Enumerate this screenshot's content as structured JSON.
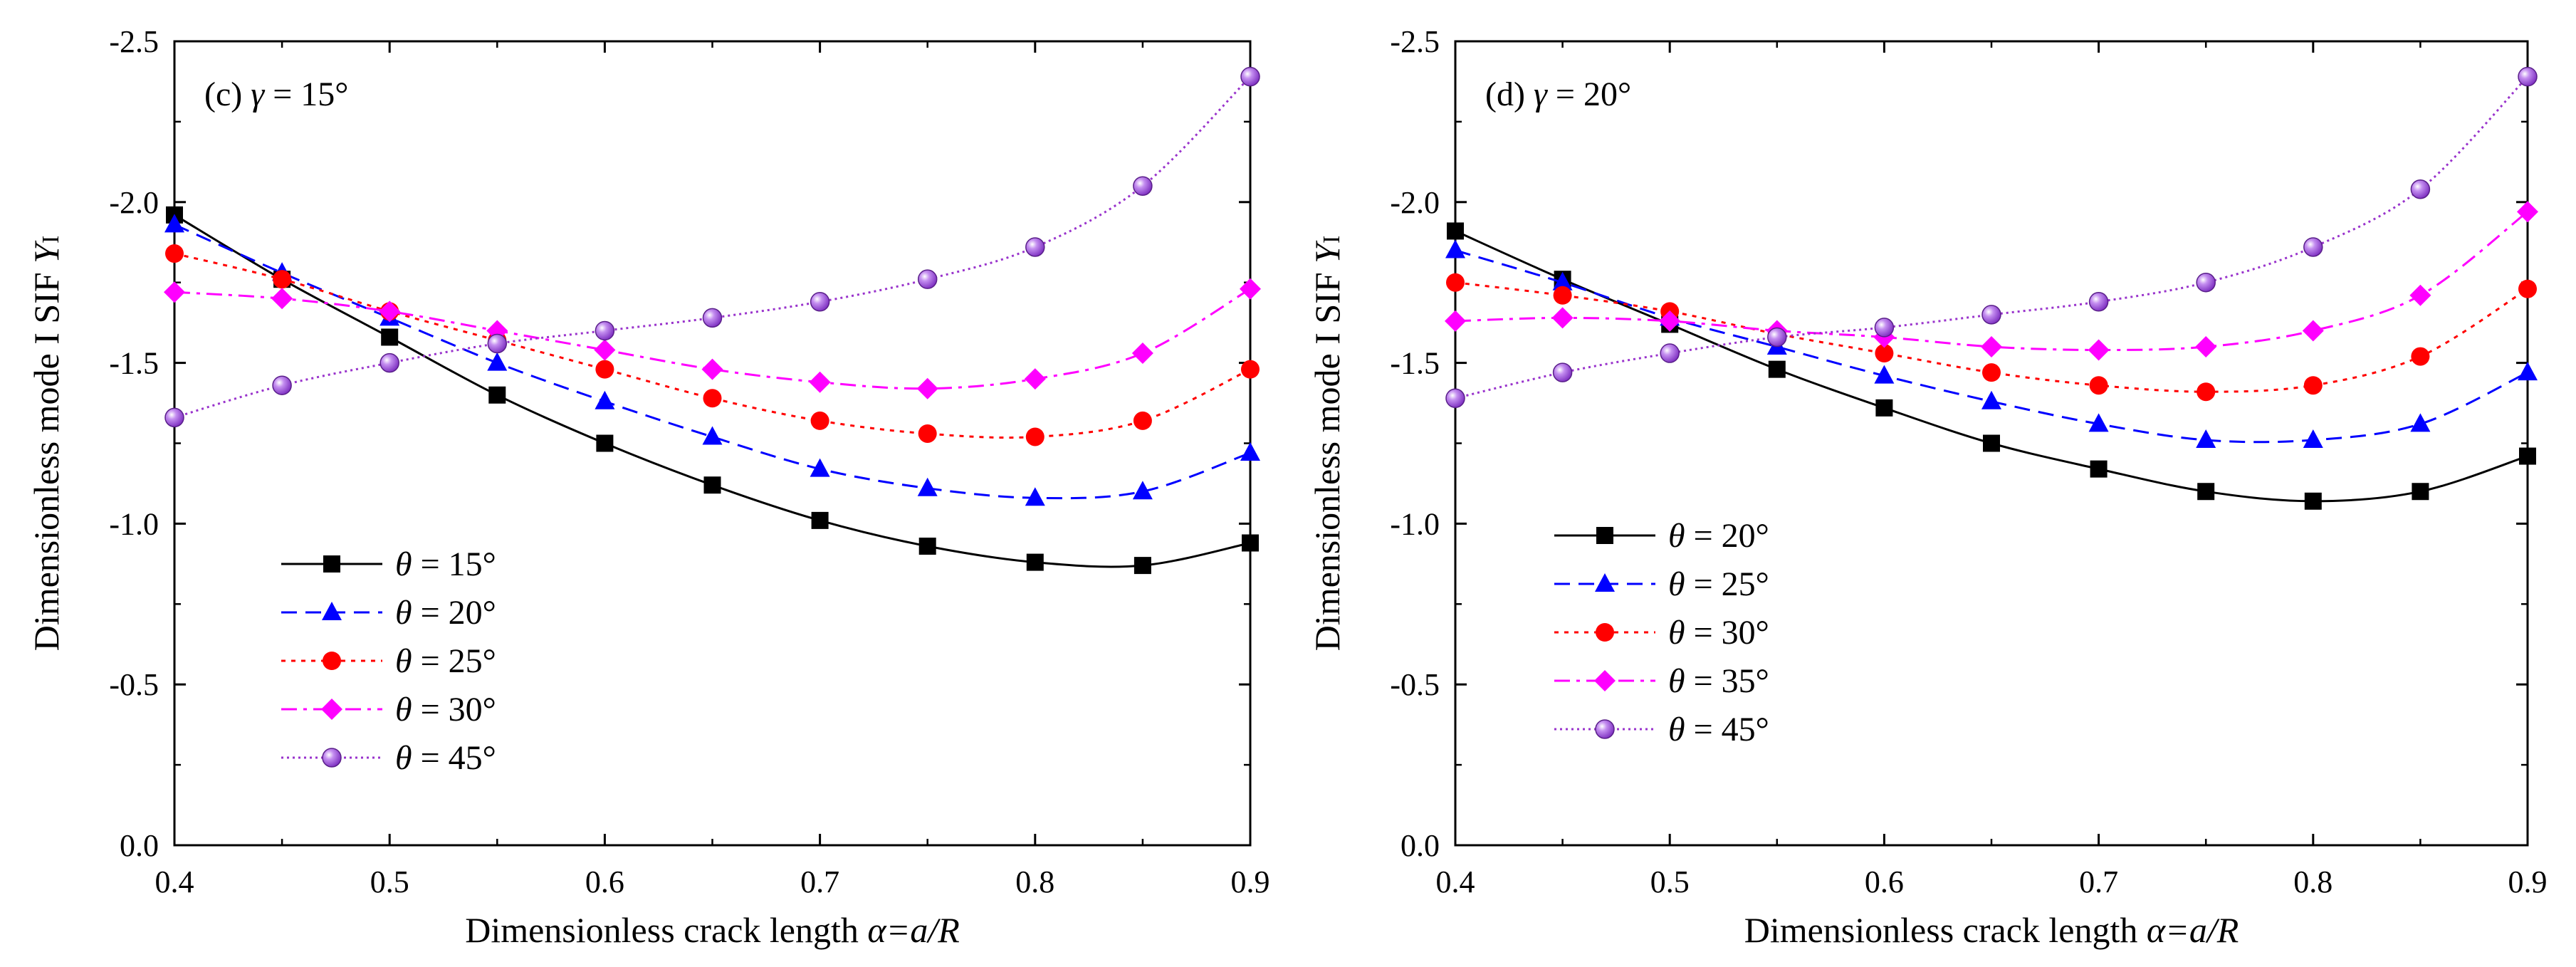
{
  "chart_data": [
    {
      "type": "line",
      "title": "(c)  γ = 15°",
      "title_parts": {
        "label": "(c)",
        "symbol": "γ",
        "eq": " = 15°"
      },
      "xlabel": "Dimensionless crack length α=a/R",
      "xlabel_parts": {
        "text": "Dimensionless crack length ",
        "math": "α=a/R"
      },
      "ylabel": "Dimensionless mode I SIF YI",
      "ylabel_parts": {
        "text": "Dimensionless mode I SIF ",
        "math": "Y",
        "sub": "I"
      },
      "xlim": [
        0.4,
        0.9
      ],
      "ylim": [
        0.0,
        -2.5
      ],
      "xticks": [
        "0.4",
        "0.5",
        "0.6",
        "0.7",
        "0.8",
        "0.9"
      ],
      "yticks": [
        "0.0",
        "-0.5",
        "-1.0",
        "-1.5",
        "-2.0",
        "-2.5"
      ],
      "x": [
        0.4,
        0.45,
        0.5,
        0.55,
        0.6,
        0.65,
        0.7,
        0.75,
        0.8,
        0.85,
        0.9
      ],
      "legend_position": "bottom-left",
      "series": [
        {
          "name": "θ = 15°",
          "symbol": "θ",
          "eq": " = 15°",
          "color": "#000000",
          "marker": "square",
          "dash": "solid",
          "values": [
            -1.96,
            -1.76,
            -1.58,
            -1.4,
            -1.25,
            -1.12,
            -1.01,
            -0.93,
            -0.88,
            -0.87,
            -0.94
          ]
        },
        {
          "name": "θ = 20°",
          "symbol": "θ",
          "eq": " = 20°",
          "color": "#0000ff",
          "marker": "triangle",
          "dash": "dash",
          "values": [
            -1.93,
            -1.78,
            -1.64,
            -1.5,
            -1.38,
            -1.27,
            -1.17,
            -1.11,
            -1.08,
            -1.1,
            -1.22
          ]
        },
        {
          "name": "θ = 25°",
          "symbol": "θ",
          "eq": " = 25°",
          "color": "#ff0000",
          "marker": "circle",
          "dash": "dot",
          "values": [
            -1.84,
            -1.76,
            -1.66,
            -1.57,
            -1.48,
            -1.39,
            -1.32,
            -1.28,
            -1.27,
            -1.32,
            -1.48
          ]
        },
        {
          "name": "θ = 30°",
          "symbol": "θ",
          "eq": " = 30°",
          "color": "#ff00ff",
          "marker": "diamond",
          "dash": "dashdot",
          "values": [
            -1.72,
            -1.7,
            -1.66,
            -1.6,
            -1.54,
            -1.48,
            -1.44,
            -1.42,
            -1.45,
            -1.53,
            -1.73
          ]
        },
        {
          "name": "θ = 45°",
          "symbol": "θ",
          "eq": " = 45°",
          "color": "#9933cc",
          "marker": "sphere",
          "dash": "shortdot",
          "values": [
            -1.33,
            -1.43,
            -1.5,
            -1.56,
            -1.6,
            -1.64,
            -1.69,
            -1.76,
            -1.86,
            -2.05,
            -2.39
          ]
        }
      ]
    },
    {
      "type": "line",
      "title": "(d)  γ = 20°",
      "title_parts": {
        "label": "(d)",
        "symbol": "γ",
        "eq": " = 20°"
      },
      "xlabel": "Dimensionless crack length α=a/R",
      "xlabel_parts": {
        "text": "Dimensionless crack length ",
        "math": "α=a/R"
      },
      "ylabel": "Dimensionless mode I SIF YI",
      "ylabel_parts": {
        "text": "Dimensionless mode I SIF ",
        "math": "Y",
        "sub": "I"
      },
      "xlim": [
        0.4,
        0.9
      ],
      "ylim": [
        0.0,
        -2.5
      ],
      "xticks": [
        "0.4",
        "0.5",
        "0.6",
        "0.7",
        "0.8",
        "0.9"
      ],
      "yticks": [
        "0.0",
        "-0.5",
        "-1.0",
        "-1.5",
        "-2.0",
        "-2.5"
      ],
      "x": [
        0.4,
        0.45,
        0.5,
        0.55,
        0.6,
        0.65,
        0.7,
        0.75,
        0.8,
        0.85,
        0.9
      ],
      "legend_position": "bottom-left",
      "series": [
        {
          "name": "θ = 20°",
          "symbol": "θ",
          "eq": " = 20°",
          "color": "#000000",
          "marker": "square",
          "dash": "solid",
          "values": [
            -1.91,
            -1.76,
            -1.62,
            -1.48,
            -1.36,
            -1.25,
            -1.17,
            -1.1,
            -1.07,
            -1.1,
            -1.21
          ]
        },
        {
          "name": "θ = 25°",
          "symbol": "θ",
          "eq": " = 25°",
          "color": "#0000ff",
          "marker": "triangle",
          "dash": "dash",
          "values": [
            -1.85,
            -1.75,
            -1.64,
            -1.55,
            -1.46,
            -1.38,
            -1.31,
            -1.26,
            -1.26,
            -1.31,
            -1.47
          ]
        },
        {
          "name": "θ = 30°",
          "symbol": "θ",
          "eq": " = 30°",
          "color": "#ff0000",
          "marker": "circle",
          "dash": "dot",
          "values": [
            -1.75,
            -1.71,
            -1.66,
            -1.59,
            -1.53,
            -1.47,
            -1.43,
            -1.41,
            -1.43,
            -1.52,
            -1.73
          ]
        },
        {
          "name": "θ = 35°",
          "symbol": "θ",
          "eq": " = 35°",
          "color": "#ff00ff",
          "marker": "diamond",
          "dash": "dashdot",
          "values": [
            -1.63,
            -1.64,
            -1.63,
            -1.6,
            -1.58,
            -1.55,
            -1.54,
            -1.55,
            -1.6,
            -1.71,
            -1.97
          ]
        },
        {
          "name": "θ = 45°",
          "symbol": "θ",
          "eq": " = 45°",
          "color": "#9933cc",
          "marker": "sphere",
          "dash": "shortdot",
          "values": [
            -1.39,
            -1.47,
            -1.53,
            -1.58,
            -1.61,
            -1.65,
            -1.69,
            -1.75,
            -1.86,
            -2.04,
            -2.39
          ]
        }
      ]
    }
  ]
}
